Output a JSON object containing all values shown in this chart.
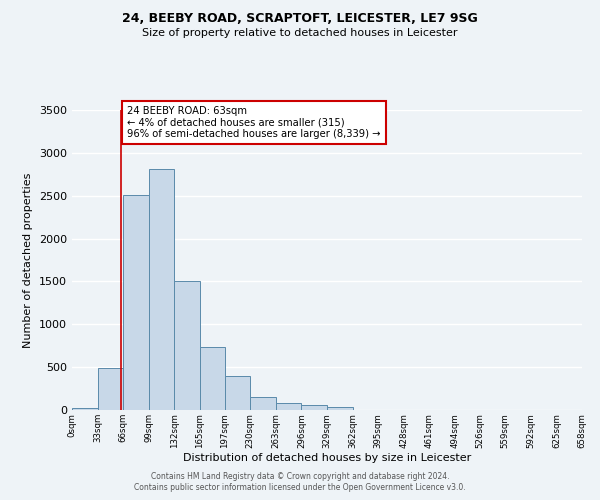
{
  "title1": "24, BEEBY ROAD, SCRAPTOFT, LEICESTER, LE7 9SG",
  "title2": "Size of property relative to detached houses in Leicester",
  "xlabel": "Distribution of detached houses by size in Leicester",
  "ylabel": "Number of detached properties",
  "bin_edges": [
    0,
    33,
    66,
    99,
    132,
    165,
    197,
    230,
    263,
    296,
    329,
    362,
    395,
    428,
    461,
    494,
    526,
    559,
    592,
    625,
    658
  ],
  "bin_labels": [
    "0sqm",
    "33sqm",
    "66sqm",
    "99sqm",
    "132sqm",
    "165sqm",
    "197sqm",
    "230sqm",
    "263sqm",
    "296sqm",
    "329sqm",
    "362sqm",
    "395sqm",
    "428sqm",
    "461sqm",
    "494sqm",
    "526sqm",
    "559sqm",
    "592sqm",
    "625sqm",
    "658sqm"
  ],
  "bar_heights": [
    20,
    490,
    2510,
    2810,
    1510,
    740,
    400,
    150,
    80,
    55,
    40,
    0,
    0,
    0,
    0,
    0,
    0,
    0,
    0,
    0
  ],
  "bar_color": "#c8d8e8",
  "bar_edge_color": "#5a8aaa",
  "ylim": [
    0,
    3500
  ],
  "yticks": [
    0,
    500,
    1000,
    1500,
    2000,
    2500,
    3000,
    3500
  ],
  "vline_x": 63,
  "vline_color": "#cc0000",
  "annotation_text": "24 BEEBY ROAD: 63sqm\n← 4% of detached houses are smaller (315)\n96% of semi-detached houses are larger (8,339) →",
  "annotation_box_color": "#ffffff",
  "annotation_box_edge_color": "#cc0000",
  "footer1": "Contains HM Land Registry data © Crown copyright and database right 2024.",
  "footer2": "Contains public sector information licensed under the Open Government Licence v3.0.",
  "bg_color": "#eef3f7",
  "plot_bg_color": "#eef3f7",
  "grid_color": "#ffffff"
}
